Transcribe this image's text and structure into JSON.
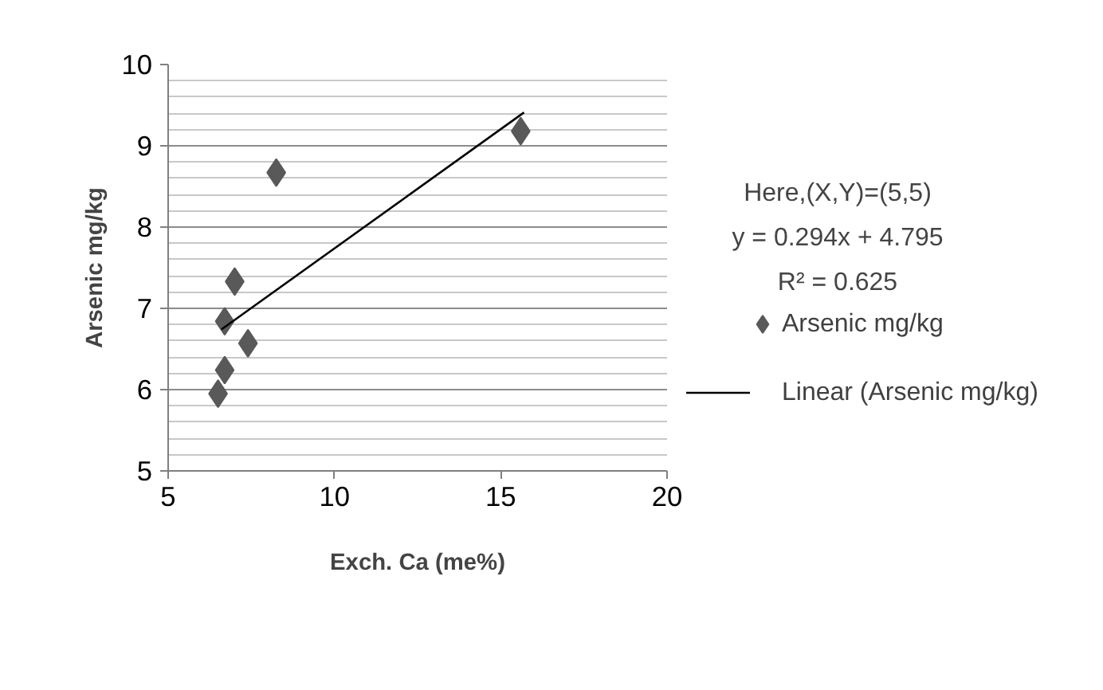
{
  "chart_data": {
    "type": "scatter",
    "xlabel": "Exch. Ca (me%)",
    "ylabel": "Arsenic mg/kg",
    "series": [
      {
        "name": "Arsenic mg/kg",
        "color": "#595959",
        "marker": "diamond",
        "x": [
          8.25,
          15.6,
          7.0,
          6.7,
          7.4,
          6.7,
          6.5
        ],
        "values": [
          8.67,
          9.18,
          7.33,
          6.84,
          6.57,
          6.24,
          5.95
        ]
      },
      {
        "name": "Linear (Arsenic mg/kg)",
        "type": "line",
        "color": "#000000",
        "x": [
          6.6,
          15.7
        ],
        "values": [
          6.74,
          9.41
        ]
      }
    ],
    "annotations": [
      "Here,(X,Y)=(5,5)",
      "y = 0.294x + 4.795",
      "R² = 0.625"
    ],
    "xlim": [
      5,
      20
    ],
    "xticks": [
      5,
      10,
      15,
      20
    ],
    "ylim": [
      5,
      10
    ],
    "yticks": [
      5,
      {
        "value": 5.2,
        "label": null
      },
      {
        "value": 5.4,
        "label": null
      },
      {
        "value": 5.6,
        "label": null
      },
      {
        "value": 5.8,
        "label": null
      },
      6,
      {
        "value": 6.2,
        "label": null
      },
      {
        "value": 6.4,
        "label": null
      },
      {
        "value": 6.6,
        "label": null
      },
      {
        "value": 6.8,
        "label": null
      },
      7,
      {
        "value": 7.2,
        "label": null
      },
      {
        "value": 7.4,
        "label": null
      },
      {
        "value": 7.6,
        "label": null
      },
      {
        "value": 7.8,
        "label": null
      },
      8,
      {
        "value": 8.2,
        "label": null
      },
      {
        "value": 8.4,
        "label": null
      },
      {
        "value": 8.6,
        "label": null
      },
      {
        "value": 8.8,
        "label": null
      },
      9,
      {
        "value": 9.2,
        "label": null
      },
      {
        "value": 9.4,
        "label": null
      },
      {
        "value": 9.6,
        "label": null
      },
      {
        "value": 9.8,
        "label": null
      },
      10
    ],
    "grid": "y",
    "legend": "right"
  }
}
